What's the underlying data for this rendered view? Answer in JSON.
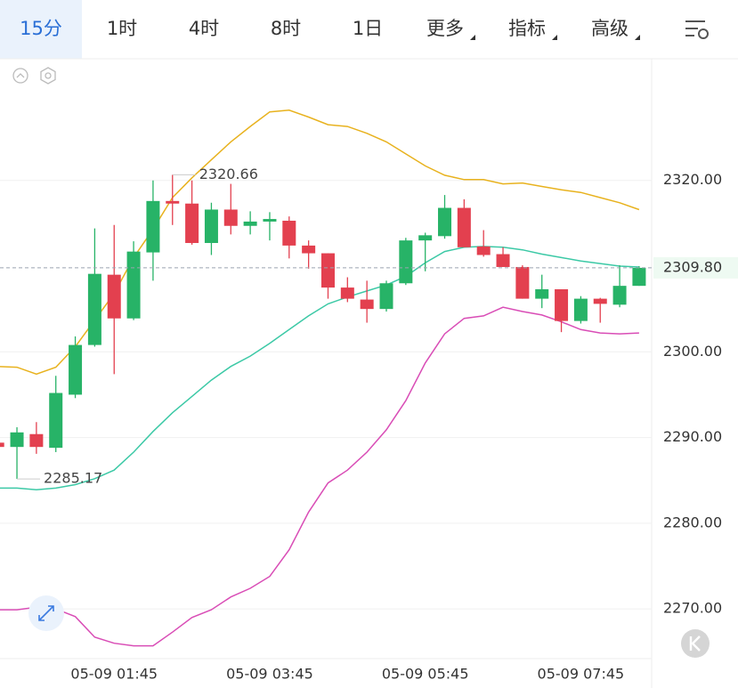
{
  "toolbar": {
    "tabs": [
      "15分",
      "1时",
      "4时",
      "8时",
      "1日",
      "更多",
      "指标",
      "高级"
    ]
  },
  "chart_data": {
    "type": "candlestick",
    "categories": [
      null,
      null,
      null,
      null,
      null,
      null,
      "05-09 01:45",
      null,
      null,
      null,
      null,
      null,
      null,
      null,
      "05-09 03:45",
      null,
      null,
      null,
      null,
      null,
      null,
      null,
      "05-09 05:45",
      null,
      null,
      null,
      null,
      null,
      null,
      null,
      "05-09 07:45",
      null,
      null,
      null
    ],
    "open": [
      2289.4,
      2288.9,
      2290.4,
      2288.8,
      2295.0,
      2300.8,
      2309.0,
      2303.9,
      2311.6,
      2317.6,
      2317.3,
      2312.7,
      2316.6,
      2314.7,
      2315.2,
      2315.3,
      2312.4,
      2311.5,
      2307.5,
      2306.1,
      2305.0,
      2308.0,
      2313.0,
      2313.5,
      2316.8,
      2312.3,
      2311.4,
      2309.9,
      2306.2,
      2307.3,
      2303.6,
      2306.2,
      2305.5,
      2307.7
    ],
    "high": [
      2289.6,
      2291.2,
      2291.8,
      2297.2,
      2301.8,
      2314.4,
      2314.8,
      2312.9,
      2320.0,
      2320.66,
      2320.0,
      2317.4,
      2319.6,
      2316.4,
      2316.3,
      2315.8,
      2313.0,
      2311.5,
      2308.7,
      2308.3,
      2308.3,
      2313.3,
      2313.9,
      2318.3,
      2317.8,
      2314.2,
      2312.2,
      2310.1,
      2309.0,
      2307.3,
      2306.5,
      2306.3,
      2310.1,
      2310.0
    ],
    "low": [
      2288.8,
      2285.17,
      2288.1,
      2288.3,
      2294.6,
      2300.6,
      2297.4,
      2303.7,
      2308.3,
      2314.8,
      2312.5,
      2311.3,
      2313.7,
      2313.7,
      2313.0,
      2310.9,
      2309.7,
      2306.2,
      2305.8,
      2303.4,
      2304.7,
      2307.8,
      2309.4,
      2313.2,
      2312.2,
      2311.1,
      2309.9,
      2306.2,
      2305.1,
      2302.3,
      2303.3,
      2303.4,
      2305.2,
      2307.7
    ],
    "close": [
      2288.9,
      2290.6,
      2288.9,
      2295.2,
      2300.8,
      2309.1,
      2303.9,
      2311.7,
      2317.6,
      2317.3,
      2312.7,
      2316.6,
      2314.7,
      2315.2,
      2315.5,
      2312.4,
      2311.5,
      2307.5,
      2306.2,
      2305.0,
      2308.0,
      2313.0,
      2313.6,
      2316.8,
      2312.2,
      2311.3,
      2309.9,
      2306.2,
      2307.3,
      2303.6,
      2306.2,
      2305.6,
      2307.7,
      2309.8
    ],
    "up_color": "#27b367",
    "down_color": "#e3404f",
    "overlays": [
      {
        "color": "#e8b21e",
        "values": [
          2298.3,
          2298.2,
          2297.4,
          2298.2,
          2300.6,
          2303.7,
          2306.8,
          2311.0,
          2314.3,
          2318.0,
          2320.3,
          2322.4,
          2324.5,
          2326.3,
          2328.0,
          2328.2,
          2327.4,
          2326.5,
          2326.3,
          2325.5,
          2324.5,
          2323.1,
          2321.7,
          2320.6,
          2320.1,
          2320.1,
          2319.6,
          2319.7,
          2319.3,
          2318.9,
          2318.6,
          2318.0,
          2317.4,
          2316.6
        ]
      },
      {
        "color": "#3cc9a6",
        "values": [
          2284.1,
          2284.1,
          2283.9,
          2284.1,
          2284.5,
          2285.2,
          2286.2,
          2288.3,
          2290.7,
          2292.9,
          2294.8,
          2296.7,
          2298.3,
          2299.5,
          2301.0,
          2302.6,
          2304.2,
          2305.6,
          2306.4,
          2307.1,
          2307.8,
          2308.8,
          2310.4,
          2311.7,
          2312.2,
          2312.3,
          2312.2,
          2311.9,
          2311.4,
          2311.0,
          2310.6,
          2310.3,
          2310.0,
          2309.9
        ]
      },
      {
        "color": "#d94db6",
        "values": [
          2269.9,
          2269.9,
          2270.2,
          2270.0,
          2269.1,
          2266.7,
          2266.0,
          2265.7,
          2265.7,
          2267.3,
          2269.0,
          2269.9,
          2271.4,
          2272.4,
          2273.8,
          2276.9,
          2281.3,
          2284.7,
          2286.2,
          2288.3,
          2290.9,
          2294.3,
          2298.7,
          2302.1,
          2303.9,
          2304.2,
          2305.2,
          2304.7,
          2304.3,
          2303.5,
          2302.6,
          2302.2,
          2302.1,
          2302.2
        ]
      }
    ],
    "ylim": [
      2264.2,
      2334.2
    ],
    "yticks": [
      {
        "value": 2270,
        "label": "2270.00"
      },
      {
        "value": 2280,
        "label": "2280.00"
      },
      {
        "value": 2290,
        "label": "2290.00"
      },
      {
        "value": 2300,
        "label": "2300.00"
      },
      {
        "value": 2320,
        "label": "2320.00"
      }
    ],
    "grid": true,
    "current_price": {
      "value": 2309.8,
      "label": "2309.80"
    },
    "high_label": {
      "value": 2320.66,
      "label": "2320.66"
    },
    "low_label": {
      "value": 2285.17,
      "label": "2285.17"
    }
  }
}
